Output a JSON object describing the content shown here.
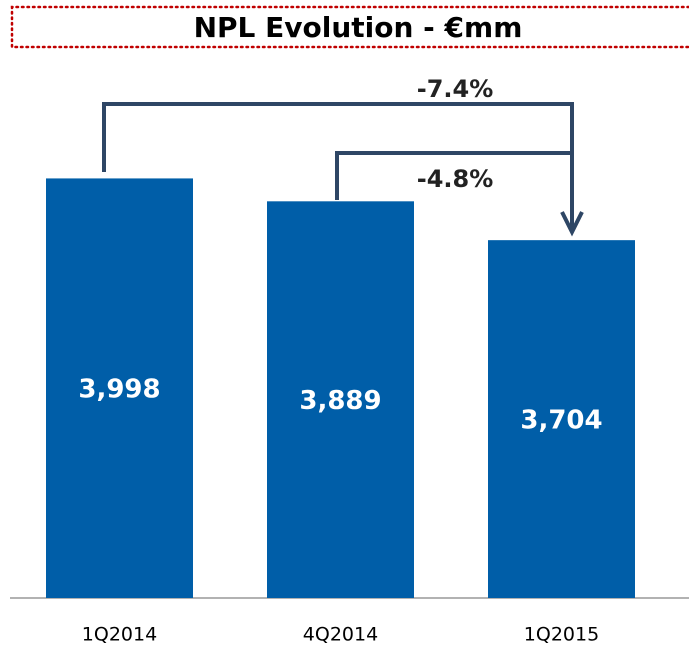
{
  "chart_data": {
    "type": "bar",
    "title": "NPL Evolution - €mm",
    "categories": [
      "1Q2014",
      "4Q2014",
      "1Q2015"
    ],
    "values": [
      3998,
      3889,
      3704
    ],
    "value_labels": [
      "3,998",
      "3,889",
      "3,704"
    ],
    "color": "#005ea8",
    "ylim": [
      2000,
      4500
    ],
    "annotations": [
      "-7.4%",
      "-4.8%"
    ]
  }
}
